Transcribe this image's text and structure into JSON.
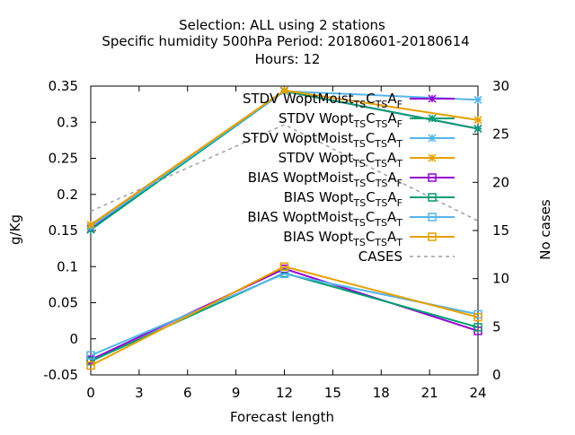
{
  "chart_data": {
    "type": "line",
    "title_lines": [
      "Selection: ALL using     2 stations",
      "Specific humidity 500hPa   Period: 20180601-20180614",
      "Hours:  12"
    ],
    "xlabel": "Forecast length",
    "ylabel": "g/Kg",
    "y2label": "No cases",
    "xlim": [
      0,
      24
    ],
    "ylim": [
      -0.05,
      0.35
    ],
    "y2lim": [
      0,
      30
    ],
    "xticks": [
      "0",
      "3",
      "6",
      "9",
      "12",
      "15",
      "18",
      "21",
      "24"
    ],
    "yticks": [
      "-0.05",
      "0",
      "0.05",
      "0.1",
      "0.15",
      "0.2",
      "0.25",
      "0.3",
      "0.35"
    ],
    "y2ticks": [
      "0",
      "5",
      "10",
      "15",
      "20",
      "25",
      "30"
    ],
    "x": [
      0,
      12,
      24
    ],
    "grid": false,
    "legend_position": "top-right",
    "series": [
      {
        "name": "STDV WoptMoist",
        "sub1": "TS",
        "mid": "C",
        "sub2": "TS",
        "tail": "A",
        "sub3": "F",
        "color": "#9400d3",
        "marker": "star",
        "dash": false,
        "axis": "y",
        "values": [
          0.152,
          0.343,
          0.291
        ]
      },
      {
        "name": "STDV Wopt",
        "sub1": "TS",
        "mid": "C",
        "sub2": "TS",
        "tail": "A",
        "sub3": "F",
        "color": "#009e73",
        "marker": "star",
        "dash": false,
        "axis": "y",
        "values": [
          0.151,
          0.343,
          0.291
        ]
      },
      {
        "name": "STDV WoptMoist",
        "sub1": "TS",
        "mid": "C",
        "sub2": "TS",
        "tail": "A",
        "sub3": "T",
        "color": "#56b4e9",
        "marker": "star",
        "dash": false,
        "axis": "y",
        "values": [
          0.155,
          0.343,
          0.331
        ]
      },
      {
        "name": "STDV Wopt",
        "sub1": "TS",
        "mid": "C",
        "sub2": "TS",
        "tail": "A",
        "sub3": "T",
        "color": "#e69f00",
        "marker": "star",
        "dash": false,
        "axis": "y",
        "values": [
          0.158,
          0.344,
          0.303
        ]
      },
      {
        "name": "BIAS WoptMoist",
        "sub1": "TS",
        "mid": "C",
        "sub2": "TS",
        "tail": "A",
        "sub3": "F",
        "color": "#9400d3",
        "marker": "square",
        "dash": false,
        "axis": "y",
        "values": [
          -0.029,
          0.097,
          0.011
        ]
      },
      {
        "name": "BIAS Wopt",
        "sub1": "TS",
        "mid": "C",
        "sub2": "TS",
        "tail": "A",
        "sub3": "F",
        "color": "#009e73",
        "marker": "square",
        "dash": false,
        "axis": "y",
        "values": [
          -0.031,
          0.091,
          0.016
        ]
      },
      {
        "name": "BIAS WoptMoist",
        "sub1": "TS",
        "mid": "C",
        "sub2": "TS",
        "tail": "A",
        "sub3": "T",
        "color": "#56b4e9",
        "marker": "square",
        "dash": false,
        "axis": "y",
        "values": [
          -0.023,
          0.09,
          0.034
        ]
      },
      {
        "name": "BIAS Wopt",
        "sub1": "TS",
        "mid": "C",
        "sub2": "TS",
        "tail": "A",
        "sub3": "T",
        "color": "#e69f00",
        "marker": "square",
        "dash": false,
        "axis": "y",
        "values": [
          -0.037,
          0.1,
          0.03
        ]
      },
      {
        "name": "CASES",
        "sub1": "",
        "mid": "",
        "sub2": "",
        "tail": "",
        "sub3": "",
        "color": "#a0a0a0",
        "marker": "none",
        "dash": true,
        "axis": "y2",
        "values": [
          17,
          26,
          16
        ]
      }
    ]
  }
}
